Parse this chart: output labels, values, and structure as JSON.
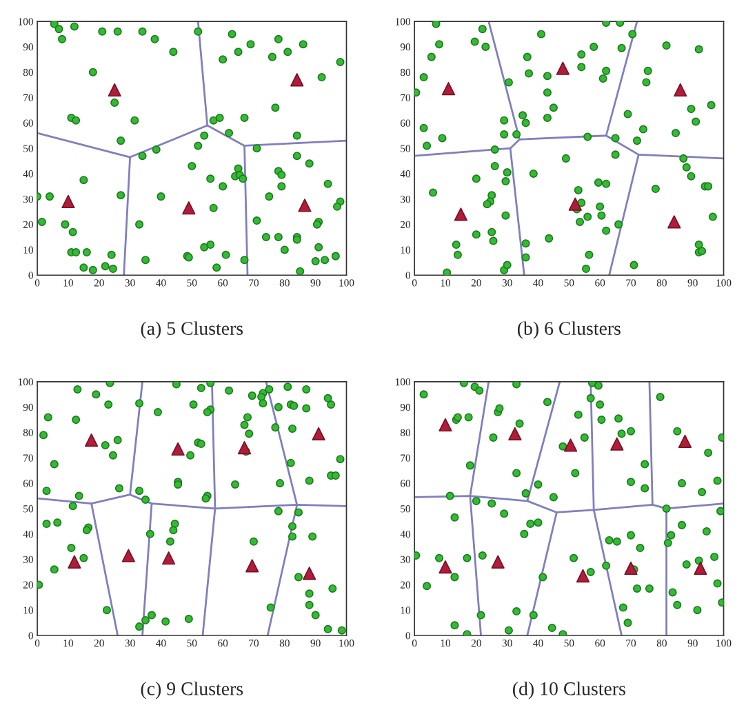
{
  "chart_data": [
    {
      "type": "scatter",
      "title": "(a) 5 Clusters",
      "xlim": [
        0,
        100
      ],
      "ylim": [
        0,
        100
      ],
      "xticks": [
        0,
        10,
        20,
        30,
        40,
        50,
        60,
        70,
        80,
        90,
        100
      ],
      "yticks": [
        0,
        10,
        20,
        30,
        40,
        50,
        60,
        70,
        80,
        90,
        100
      ],
      "series": [
        {
          "type": "line",
          "color": "#7f7fbf",
          "x": [
            0,
            30,
            28
          ],
          "values": [
            56,
            46.5,
            0
          ]
        },
        {
          "type": "line",
          "color": "#7f7fbf",
          "x": [
            30,
            55,
            52
          ],
          "values": [
            46.5,
            59,
            100
          ]
        },
        {
          "type": "line",
          "color": "#7f7fbf",
          "x": [
            55,
            67,
            68
          ],
          "values": [
            59,
            51,
            0
          ]
        },
        {
          "type": "line",
          "color": "#7f7fbf",
          "x": [
            67,
            100
          ],
          "values": [
            51,
            53
          ]
        },
        {
          "marker": "circle",
          "color": "#33bb33",
          "x": [
            5.5,
            7,
            8,
            12,
            21,
            26,
            34,
            38,
            44,
            52,
            18,
            25,
            11,
            12.5,
            31.5,
            27,
            34,
            38.5,
            57,
            59,
            67,
            62,
            54,
            52,
            50,
            56,
            60,
            65,
            64,
            65.5,
            66.5,
            40,
            57,
            63,
            65,
            69,
            60,
            76,
            78,
            81,
            86,
            77,
            92,
            98,
            84,
            71,
            84,
            88,
            78,
            79,
            79,
            94,
            75,
            71,
            98,
            97,
            91,
            90.5,
            74,
            78,
            84,
            84,
            80,
            91,
            90,
            93,
            96.5,
            85,
            67,
            61,
            58,
            56,
            54,
            48.5,
            49,
            35,
            33,
            27,
            15,
            0,
            4,
            1.5,
            9,
            11.5,
            11,
            12.5,
            16,
            15,
            18,
            22,
            24,
            24.5
          ],
          "values": [
            99,
            97,
            93,
            98,
            96,
            96,
            96,
            93,
            88,
            96,
            80,
            68,
            62,
            61,
            61,
            53,
            47,
            49.5,
            61,
            62,
            62,
            56,
            55,
            51,
            43,
            38,
            35,
            42,
            39,
            39.5,
            38,
            31,
            26.5,
            95,
            88,
            91,
            85,
            86,
            93,
            88,
            91,
            66,
            78,
            84,
            55,
            50,
            47,
            44,
            41,
            39.5,
            35,
            36,
            31,
            21.5,
            29,
            27,
            21,
            20,
            15,
            15,
            15,
            14,
            10,
            11,
            5.5,
            6,
            7.5,
            1.5,
            6,
            8,
            3,
            12,
            11,
            7.5,
            7,
            6,
            20,
            31.5,
            37.5,
            31,
            31,
            21,
            20,
            17,
            9,
            9,
            9,
            3,
            2,
            3.5,
            8,
            2.5
          ]
        },
        {
          "marker": "triangle",
          "color": "#b01c3c",
          "x": [
            25,
            84,
            10,
            49,
            86.5
          ],
          "values": [
            73,
            77,
            29,
            26.5,
            27.5
          ]
        }
      ]
    },
    {
      "type": "scatter",
      "title": "(b) 6 Clusters",
      "xlim": [
        0,
        100
      ],
      "ylim": [
        0,
        100
      ],
      "xticks": [
        0,
        10,
        20,
        30,
        40,
        50,
        60,
        70,
        80,
        90,
        100
      ],
      "yticks": [
        0,
        10,
        20,
        30,
        40,
        50,
        60,
        70,
        80,
        90,
        100
      ],
      "series": [
        {
          "type": "line",
          "color": "#7f7fbf",
          "x": [
            0,
            31,
            35.5
          ],
          "values": [
            47,
            50,
            0
          ]
        },
        {
          "type": "line",
          "color": "#7f7fbf",
          "x": [
            31,
            34,
            24
          ],
          "values": [
            50,
            53.5,
            100
          ]
        },
        {
          "type": "line",
          "color": "#7f7fbf",
          "x": [
            34,
            62,
            72
          ],
          "values": [
            53.5,
            55,
            100
          ]
        },
        {
          "type": "line",
          "color": "#7f7fbf",
          "x": [
            62,
            72.5,
            63
          ],
          "values": [
            55,
            47.5,
            0
          ]
        },
        {
          "type": "line",
          "color": "#7f7fbf",
          "x": [
            72.5,
            100
          ],
          "values": [
            47.5,
            46
          ]
        },
        {
          "marker": "circle",
          "color": "#33bb33",
          "x": [
            7,
            8,
            5.5,
            3,
            0.5,
            3,
            4,
            9,
            19.5,
            22,
            23,
            29,
            29,
            33,
            30.5,
            26,
            26,
            20,
            30,
            29.5,
            6,
            25,
            24.5,
            23.5,
            29.5,
            25,
            25.5,
            20,
            13.5,
            14,
            10.5,
            29,
            30,
            36,
            36,
            43.5,
            38.5,
            35,
            36,
            36.5,
            37,
            41,
            43,
            43,
            45,
            43,
            54,
            54,
            58,
            62,
            66.5,
            67,
            62,
            61,
            70.5,
            69,
            56,
            65,
            65,
            49,
            53,
            54,
            59.5,
            62,
            60,
            60.5,
            52.5,
            53.5,
            56,
            66,
            62,
            56.5,
            55.5,
            71,
            81.5,
            92,
            75.5,
            75,
            74,
            72,
            84.5,
            89.5,
            91,
            96,
            87,
            88,
            89.5,
            94,
            95,
            96.5,
            78,
            92,
            92,
            93
          ],
          "values": [
            99,
            91,
            86,
            78,
            72,
            58,
            51,
            54,
            92,
            97,
            90,
            61,
            55.5,
            55.5,
            76,
            49.5,
            43,
            38,
            40.5,
            37,
            32.5,
            31.5,
            29,
            28,
            23.5,
            17,
            13.5,
            16,
            12,
            8,
            1,
            2,
            4,
            12.5,
            7,
            14.5,
            40,
            63,
            60,
            86,
            79.5,
            95,
            78.5,
            72,
            66,
            62,
            87,
            82,
            90,
            99.5,
            99.5,
            89.5,
            80.5,
            77.5,
            95,
            63.5,
            54.5,
            54,
            47.5,
            46,
            33.5,
            28.5,
            36.5,
            36,
            27,
            23.5,
            26,
            21,
            23,
            20,
            17.5,
            8,
            2.5,
            4,
            90.5,
            89,
            80.5,
            76,
            57.5,
            53,
            56,
            65.5,
            60.5,
            67,
            46,
            42.5,
            39,
            35,
            35,
            23,
            34,
            12,
            9,
            9.5
          ]
        },
        {
          "marker": "triangle",
          "color": "#b01c3c",
          "x": [
            11,
            48,
            86,
            15,
            52,
            84
          ],
          "values": [
            73.5,
            81.5,
            73,
            24,
            28,
            21
          ]
        }
      ]
    },
    {
      "type": "scatter",
      "title": "(c) 9 Clusters",
      "xlim": [
        0,
        100
      ],
      "ylim": [
        0,
        100
      ],
      "xticks": [
        0,
        10,
        20,
        30,
        40,
        50,
        60,
        70,
        80,
        90,
        100
      ],
      "yticks": [
        0,
        10,
        20,
        30,
        40,
        50,
        60,
        70,
        80,
        90,
        100
      ],
      "series": [
        {
          "type": "line",
          "color": "#7f7fbf",
          "x": [
            0,
            17.5,
            30,
            37,
            57.5,
            84,
            100
          ],
          "values": [
            54,
            52,
            55.5,
            52,
            50,
            51.5,
            51
          ]
        },
        {
          "type": "line",
          "color": "#7f7fbf",
          "x": [
            17.5,
            26
          ],
          "values": [
            52,
            0
          ]
        },
        {
          "type": "line",
          "color": "#7f7fbf",
          "x": [
            30,
            34
          ],
          "values": [
            55.5,
            100
          ]
        },
        {
          "type": "line",
          "color": "#7f7fbf",
          "x": [
            37,
            34
          ],
          "values": [
            52,
            0
          ]
        },
        {
          "type": "line",
          "color": "#7f7fbf",
          "x": [
            56.5,
            57.5,
            53.5
          ],
          "values": [
            100,
            50,
            0
          ]
        },
        {
          "type": "line",
          "color": "#7f7fbf",
          "x": [
            74,
            84,
            74.5
          ],
          "values": [
            100,
            51.5,
            0
          ]
        },
        {
          "marker": "circle",
          "color": "#33bb33",
          "x": [
            2,
            3.5,
            3,
            5.5,
            12.5,
            13,
            19,
            23.5,
            23,
            26,
            22,
            24.5,
            26.5,
            13.5,
            11.5,
            3,
            6.5,
            16.5,
            16,
            11,
            15,
            5.5,
            0.5,
            22.5,
            33,
            39,
            45,
            53,
            50.5,
            56,
            56,
            55,
            52,
            53,
            49.5,
            45.5,
            45.5,
            33,
            35,
            55,
            54.5,
            44.5,
            44,
            43,
            36.5,
            33,
            35,
            37,
            41.5,
            49,
            62,
            69.5,
            73,
            72.5,
            73,
            75,
            67,
            68,
            68.5,
            67.5,
            64,
            70,
            77,
            78,
            81,
            82,
            83,
            82.5,
            87,
            87,
            94,
            95,
            78.5,
            88,
            82,
            98,
            95,
            96.5,
            78,
            84.5,
            82.5,
            82.5,
            89,
            84.5,
            88,
            88,
            75.5,
            90,
            94,
            98.5,
            95.5
          ],
          "values": [
            79,
            86,
            57,
            67.5,
            85,
            97,
            95,
            99.5,
            91,
            77,
            75,
            71,
            58,
            55,
            51,
            44,
            44.5,
            42.5,
            41.5,
            34.5,
            30.5,
            26,
            20,
            10,
            91.5,
            88,
            99,
            97.5,
            91,
            99.5,
            89,
            88,
            76,
            75.5,
            71,
            60.5,
            59.5,
            57,
            53.5,
            55,
            54,
            44,
            41.5,
            37,
            40,
            3.5,
            6,
            8,
            5.5,
            6.5,
            96.5,
            94.5,
            95.5,
            94,
            91.5,
            97,
            83,
            86,
            79.5,
            72.5,
            59.5,
            37,
            82,
            90,
            98,
            91,
            90.5,
            81.5,
            97,
            89.5,
            93.5,
            91,
            60,
            61,
            68,
            69.5,
            63,
            63,
            49,
            48.5,
            43,
            39,
            39,
            23,
            16.5,
            12,
            11,
            8,
            2.5,
            2,
            18.5
          ]
        },
        {
          "marker": "triangle",
          "color": "#b01c3c",
          "x": [
            17.5,
            45.5,
            67,
            91,
            12,
            29.5,
            42.5,
            69.5,
            88
          ],
          "values": [
            77,
            73.5,
            74,
            79.5,
            29,
            31.5,
            30.5,
            27.5,
            24.5
          ]
        }
      ]
    },
    {
      "type": "scatter",
      "title": "(d) 10 Clusters",
      "xlim": [
        0,
        100
      ],
      "ylim": [
        0,
        100
      ],
      "xticks": [
        0,
        10,
        20,
        30,
        40,
        50,
        60,
        70,
        80,
        90,
        100
      ],
      "yticks": [
        0,
        10,
        20,
        30,
        40,
        50,
        60,
        70,
        80,
        90,
        100
      ],
      "series": [
        {
          "type": "line",
          "color": "#7f7fbf",
          "x": [
            0,
            18,
            36.5,
            46,
            58,
            77,
            81.5,
            100
          ],
          "values": [
            54.5,
            55,
            53,
            48.5,
            49.5,
            51.5,
            50,
            52
          ]
        },
        {
          "type": "line",
          "color": "#7f7fbf",
          "x": [
            24,
            18,
            21.5
          ],
          "values": [
            100,
            55,
            0
          ]
        },
        {
          "type": "line",
          "color": "#7f7fbf",
          "x": [
            36.5,
            47
          ],
          "values": [
            53,
            100
          ]
        },
        {
          "type": "line",
          "color": "#7f7fbf",
          "x": [
            46,
            36.5
          ],
          "values": [
            48.5,
            0
          ]
        },
        {
          "type": "line",
          "color": "#7f7fbf",
          "x": [
            57,
            58,
            67
          ],
          "values": [
            100,
            49.5,
            0
          ]
        },
        {
          "type": "line",
          "color": "#7f7fbf",
          "x": [
            76,
            77
          ],
          "values": [
            100,
            51.5
          ]
        },
        {
          "type": "line",
          "color": "#7f7fbf",
          "x": [
            81.5,
            81.5
          ],
          "values": [
            50,
            0
          ]
        },
        {
          "marker": "circle",
          "color": "#33bb33",
          "x": [
            3,
            16,
            19.5,
            21,
            13.5,
            14,
            17.5,
            18,
            11.5,
            13,
            8,
            17,
            13,
            4,
            0.5,
            13,
            17,
            22,
            21.5,
            20,
            25,
            27,
            27.5,
            25.5,
            33,
            34,
            33,
            36,
            29,
            35.5,
            37.5,
            40,
            40,
            43,
            45,
            41.5,
            33,
            38.5,
            30.5,
            44.5,
            48,
            48,
            52,
            53,
            55,
            51.5,
            57,
            57,
            57.5,
            59.5,
            60,
            60.5,
            66,
            67,
            70,
            70,
            74.5,
            74.5,
            62,
            63,
            65.5,
            70,
            73,
            76,
            72,
            71,
            67.5,
            69,
            79.5,
            85,
            86.5,
            93,
            95,
            98,
            99.5,
            81.5,
            82,
            83,
            86.5,
            88,
            92,
            94.5,
            97,
            99,
            98,
            99.5,
            85,
            91.5,
            83.5
          ],
          "values": [
            95,
            99.5,
            98,
            96.5,
            85,
            86,
            86,
            67,
            55,
            46.5,
            30.5,
            30.5,
            23,
            19.5,
            31.5,
            4,
            0.5,
            31.5,
            8,
            53,
            52,
            88,
            89.5,
            78,
            99,
            83.5,
            64,
            56,
            48,
            40,
            44,
            44.5,
            59.5,
            92,
            54.5,
            23,
            9.5,
            8,
            2,
            3,
            0.5,
            74.5,
            64,
            87,
            78,
            30.5,
            25,
            93.5,
            99.5,
            98.5,
            91,
            85,
            85.5,
            79.5,
            80.5,
            60.5,
            67.5,
            58,
            27.5,
            37.5,
            37,
            39.5,
            34.5,
            18.5,
            18.5,
            26,
            11,
            5,
            94,
            80.5,
            60,
            56.5,
            72,
            61,
            78,
            50,
            36.5,
            39.5,
            43.5,
            28,
            29.5,
            41,
            31,
            49,
            20.5,
            13,
            12,
            10,
            17
          ]
        },
        {
          "marker": "triangle",
          "color": "#b01c3c",
          "x": [
            10,
            27,
            54.5,
            70,
            92.5,
            10,
            32.5,
            50.5,
            65.5,
            87.5
          ],
          "values": [
            27,
            29,
            23.5,
            26.5,
            26.5,
            83,
            79.5,
            75,
            75.5,
            76.5
          ]
        }
      ]
    }
  ]
}
